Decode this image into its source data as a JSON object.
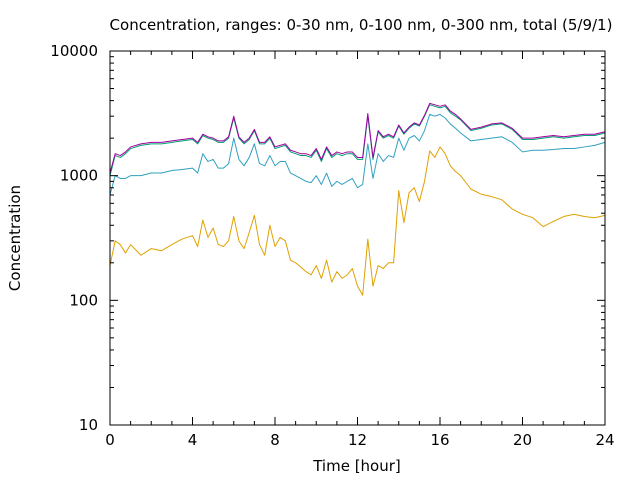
{
  "chart_data": {
    "type": "line",
    "title": "Concentration, ranges: 0-30 nm, 0-100 nm, 0-300 nm, total (5/9/1)",
    "xlabel": "Time [hour]",
    "ylabel": "Concentration",
    "xlim": [
      0,
      24
    ],
    "ylim": [
      10,
      10000
    ],
    "yscale": "log",
    "grid": false,
    "x_ticks": [
      0,
      4,
      8,
      12,
      16,
      20,
      24
    ],
    "y_ticks": [
      10,
      100,
      1000,
      10000
    ],
    "x_tick_labels": [
      "0",
      "4",
      "8",
      "12",
      "16",
      "20",
      "24"
    ],
    "y_tick_labels": [
      "10",
      "100",
      "1000",
      "10000"
    ],
    "x": [
      0,
      0.25,
      0.5,
      0.75,
      1,
      1.5,
      2,
      2.5,
      3,
      3.5,
      4,
      4.25,
      4.5,
      4.75,
      5,
      5.25,
      5.5,
      5.75,
      6,
      6.25,
      6.5,
      6.75,
      7,
      7.25,
      7.5,
      7.75,
      8,
      8.25,
      8.5,
      8.75,
      9,
      9.25,
      9.5,
      9.75,
      10,
      10.25,
      10.5,
      10.75,
      11,
      11.25,
      11.5,
      11.75,
      12,
      12.25,
      12.5,
      12.75,
      13,
      13.25,
      13.5,
      13.75,
      14,
      14.25,
      14.5,
      14.75,
      15,
      15.25,
      15.5,
      15.75,
      16,
      16.25,
      16.5,
      16.75,
      17,
      17.5,
      18,
      18.5,
      19,
      19.5,
      20,
      20.5,
      21,
      21.5,
      22,
      22.5,
      23,
      23.5,
      24
    ],
    "series": [
      {
        "name": "0-30 nm",
        "color": "#e0a000",
        "values": [
          190,
          300,
          280,
          240,
          280,
          230,
          260,
          250,
          280,
          310,
          330,
          270,
          440,
          320,
          380,
          280,
          270,
          300,
          470,
          300,
          260,
          350,
          480,
          280,
          230,
          400,
          270,
          320,
          300,
          210,
          200,
          185,
          170,
          160,
          190,
          150,
          210,
          140,
          170,
          150,
          160,
          180,
          130,
          110,
          310,
          130,
          190,
          180,
          200,
          200,
          760,
          420,
          730,
          800,
          620,
          900,
          1580,
          1400,
          1700,
          1500,
          1200,
          1080,
          1000,
          780,
          710,
          680,
          640,
          540,
          490,
          460,
          390,
          430,
          470,
          490,
          470,
          460,
          480
        ]
      },
      {
        "name": "0-100 nm",
        "color": "#30a0c0",
        "values": [
          700,
          1000,
          950,
          950,
          1000,
          1000,
          1050,
          1050,
          1100,
          1120,
          1150,
          1050,
          1500,
          1300,
          1350,
          1150,
          1150,
          1250,
          2000,
          1350,
          1200,
          1400,
          1800,
          1250,
          1200,
          1450,
          1200,
          1300,
          1300,
          1050,
          1000,
          950,
          900,
          880,
          1000,
          850,
          1050,
          820,
          900,
          850,
          900,
          950,
          800,
          850,
          1800,
          950,
          1500,
          1300,
          1450,
          1400,
          2000,
          1600,
          2000,
          2100,
          1900,
          2300,
          3100,
          3000,
          3100,
          2900,
          2600,
          2400,
          2200,
          1900,
          1950,
          2000,
          2050,
          1850,
          1550,
          1600,
          1600,
          1620,
          1650,
          1650,
          1700,
          1750,
          1850
        ]
      },
      {
        "name": "0-300 nm",
        "color": "#009e73",
        "values": [
          1000,
          1450,
          1400,
          1500,
          1650,
          1750,
          1800,
          1800,
          1850,
          1900,
          1950,
          1800,
          2100,
          2000,
          1950,
          1850,
          1850,
          2000,
          2900,
          2000,
          1800,
          1950,
          2300,
          1800,
          1800,
          2000,
          1650,
          1700,
          1750,
          1550,
          1500,
          1450,
          1450,
          1400,
          1600,
          1300,
          1650,
          1400,
          1500,
          1450,
          1500,
          1500,
          1350,
          1350,
          3000,
          1350,
          2250,
          2000,
          2100,
          2000,
          2500,
          2150,
          2400,
          2600,
          2500,
          3000,
          3700,
          3600,
          3500,
          3600,
          3200,
          3000,
          2800,
          2300,
          2400,
          2550,
          2600,
          2350,
          1950,
          1950,
          2000,
          2050,
          2000,
          2050,
          2100,
          2100,
          2200
        ]
      },
      {
        "name": "total",
        "color": "#a000a0",
        "values": [
          1050,
          1500,
          1450,
          1550,
          1700,
          1800,
          1850,
          1850,
          1900,
          1950,
          2000,
          1850,
          2150,
          2050,
          2000,
          1900,
          1900,
          2050,
          3000,
          2050,
          1850,
          2000,
          2350,
          1850,
          1850,
          2050,
          1700,
          1750,
          1800,
          1600,
          1550,
          1500,
          1500,
          1450,
          1650,
          1350,
          1700,
          1450,
          1550,
          1500,
          1550,
          1550,
          1400,
          1400,
          3150,
          1400,
          2300,
          2050,
          2150,
          2050,
          2550,
          2200,
          2450,
          2650,
          2550,
          3050,
          3800,
          3700,
          3600,
          3700,
          3300,
          3100,
          2850,
          2350,
          2450,
          2600,
          2650,
          2400,
          2000,
          2000,
          2050,
          2100,
          2050,
          2100,
          2150,
          2150,
          2250
        ]
      }
    ]
  }
}
